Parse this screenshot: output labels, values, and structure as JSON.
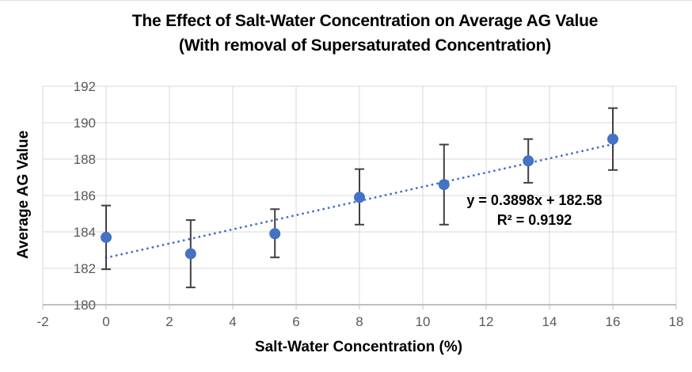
{
  "title": {
    "line1": "The Effect of Salt-Water Concentration on Average AG Value",
    "line2": "(With removal of Supersaturated Concentration)"
  },
  "axes": {
    "x_label": "Salt-Water Concentration (%)",
    "y_label": "Average AG Value"
  },
  "annotation": {
    "equation": "y = 0.3898x + 182.58",
    "r_squared": "R² = 0.9192"
  },
  "colors": {
    "marker": "#4472C4",
    "trendline": "#4472C4",
    "error_bar": "#404040",
    "gridline": "#D9D9D9",
    "axis_line": "#BFBFBF",
    "tick_label": "#595959",
    "text": "#000000",
    "background": "#FFFFFF"
  },
  "chart_data": {
    "type": "scatter",
    "title": "The Effect of Salt-Water Concentration on Average AG Value (With removal of Supersaturated Concentration)",
    "xlabel": "Salt-Water Concentration (%)",
    "ylabel": "Average AG Value",
    "xlim": [
      -2,
      18
    ],
    "ylim": [
      180,
      192
    ],
    "xticks": [
      -2,
      0,
      2,
      4,
      6,
      8,
      10,
      12,
      14,
      16,
      18
    ],
    "yticks": [
      180,
      182,
      184,
      186,
      188,
      190,
      192
    ],
    "grid": true,
    "legend": false,
    "series": [
      {
        "name": "Average AG Value",
        "marker": "circle",
        "x": [
          0,
          2.67,
          5.33,
          8,
          10.67,
          13.33,
          16
        ],
        "y": [
          183.7,
          182.8,
          183.9,
          185.9,
          186.6,
          187.9,
          189.1
        ],
        "error_y_plus": [
          1.75,
          1.85,
          1.35,
          1.55,
          2.2,
          1.2,
          1.7
        ],
        "error_y_minus": [
          1.75,
          1.85,
          1.3,
          1.5,
          2.2,
          1.2,
          1.7
        ]
      }
    ],
    "trendline": {
      "type": "linear",
      "slope": 0.3898,
      "intercept": 182.58,
      "r_squared": 0.9192,
      "x_start": 0,
      "x_end": 16.15,
      "style": "dotted",
      "equation_text": "y = 0.3898x + 182.58",
      "r_squared_text": "R² = 0.9192"
    }
  }
}
